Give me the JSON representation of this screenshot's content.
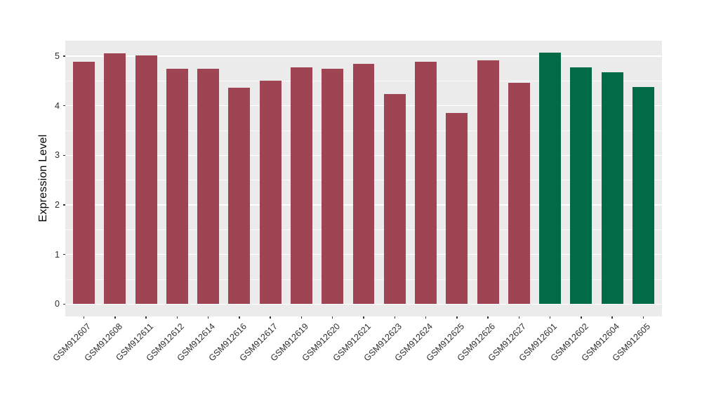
{
  "chart_data": {
    "type": "bar",
    "title": "",
    "xlabel": "",
    "ylabel": "Expression Level",
    "categories": [
      "GSM912607",
      "GSM912608",
      "GSM912611",
      "GSM912612",
      "GSM912614",
      "GSM912616",
      "GSM912617",
      "GSM912619",
      "GSM912620",
      "GSM912621",
      "GSM912623",
      "GSM912624",
      "GSM912625",
      "GSM912626",
      "GSM912627",
      "GSM912601",
      "GSM912602",
      "GSM912604",
      "GSM912605"
    ],
    "values": [
      4.88,
      5.06,
      5.02,
      4.75,
      4.74,
      4.36,
      4.5,
      4.77,
      4.75,
      4.84,
      4.24,
      4.88,
      3.85,
      4.91,
      4.46,
      5.07,
      4.77,
      4.67,
      4.37
    ],
    "bar_colors": [
      "#9E4452",
      "#9E4452",
      "#9E4452",
      "#9E4452",
      "#9E4452",
      "#9E4452",
      "#9E4452",
      "#9E4452",
      "#9E4452",
      "#9E4452",
      "#9E4452",
      "#9E4452",
      "#9E4452",
      "#9E4452",
      "#9E4452",
      "#016A47",
      "#016A47",
      "#016A47",
      "#016A47"
    ],
    "color_legend": {
      "maroon_group_hex": "#9E4452",
      "green_group_hex": "#016A47"
    },
    "yticks": [
      0,
      1,
      2,
      3,
      4,
      5
    ],
    "yticks_minor": [
      0.5,
      1.5,
      2.5,
      3.5,
      4.5
    ],
    "ylim": [
      0,
      5.31
    ],
    "render_ylim": [
      -0.25,
      5.31
    ],
    "x_expand_units": 0.6,
    "bar_width_fraction": 0.7,
    "grid": true,
    "legend_position": "none",
    "panel_bg": "#EBEBEB",
    "grid_color": "#FFFFFF",
    "tick_color": "#343434",
    "axis_text_color": "#2e2e2e"
  }
}
